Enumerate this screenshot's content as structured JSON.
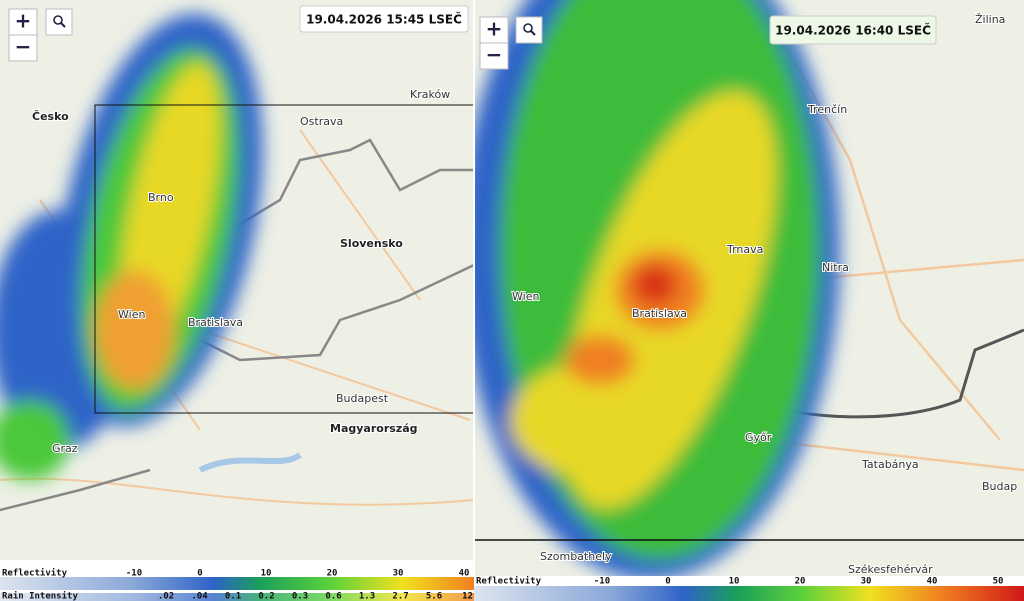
{
  "left_panel": {
    "timestamp": "19.04.2026 15:45 LSEČ",
    "zoom_in": "+",
    "zoom_out": "−",
    "places": [
      "Česko",
      "Ostrava",
      "Kraków",
      "Brno",
      "Slovensko",
      "Bratislava",
      "Wien",
      "Budapest",
      "Magyarország",
      "Graz"
    ],
    "legend": {
      "reflectivity_label": "Reflectivity",
      "reflectivity_ticks": [
        "-10",
        "0",
        "10",
        "20",
        "30",
        "40"
      ],
      "rain_label": "Rain Intensity",
      "rain_ticks": [
        ".02",
        ".04",
        "0.1",
        "0.2",
        "0.3",
        "0.6",
        "1.3",
        "2.7",
        "5.6",
        "12"
      ]
    }
  },
  "right_panel": {
    "timestamp": "19.04.2026 16:40 LSEČ",
    "zoom_in": "+",
    "zoom_out": "−",
    "places": [
      "Žilina",
      "Trenčín",
      "Trnava",
      "Nitra",
      "Bratislava",
      "Wien",
      "Győr",
      "Tatabánya",
      "Budap",
      "Szombathely",
      "Székesfehérvár"
    ],
    "legend": {
      "reflectivity_label": "Reflectivity",
      "reflectivity_ticks": [
        "-10",
        "0",
        "10",
        "20",
        "30",
        "40",
        "50"
      ]
    }
  }
}
